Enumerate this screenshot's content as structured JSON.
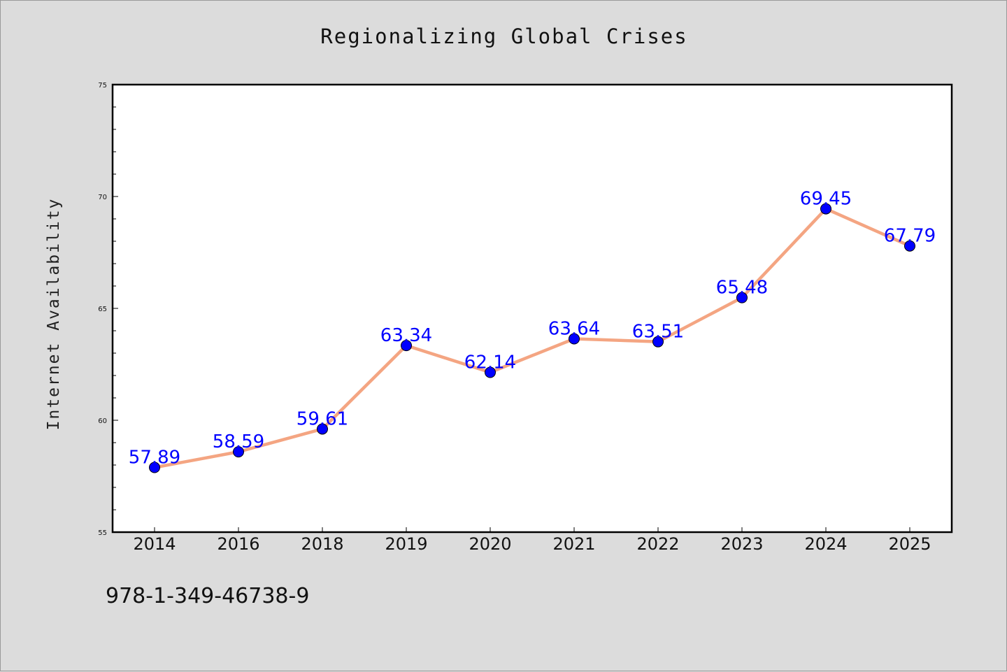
{
  "chart_data": {
    "type": "line",
    "title": "Regionalizing Global Crises",
    "ylabel": "Internet Availability",
    "xlabel": "",
    "categories": [
      "2014",
      "2016",
      "2018",
      "2019",
      "2020",
      "2021",
      "2022",
      "2023",
      "2024",
      "2025"
    ],
    "series": [
      {
        "values": [
          57.89,
          58.59,
          59.61,
          63.34,
          62.14,
          63.64,
          63.51,
          65.48,
          69.45,
          67.79
        ],
        "data_labels": [
          "57.89",
          "58.59",
          "59.61",
          "63.34",
          "62.14",
          "63.64",
          "63.51",
          "65.48",
          "69.45",
          "67.79"
        ]
      }
    ],
    "ylim": [
      55,
      75
    ],
    "yticks": [
      "55",
      "60",
      "65",
      "70",
      "75"
    ],
    "grid": false,
    "legend": "none",
    "colors": {
      "line": "#f4a582",
      "marker": "#0000ff",
      "label": "#0000ff"
    }
  },
  "footnote": "978-1-349-46738-9"
}
